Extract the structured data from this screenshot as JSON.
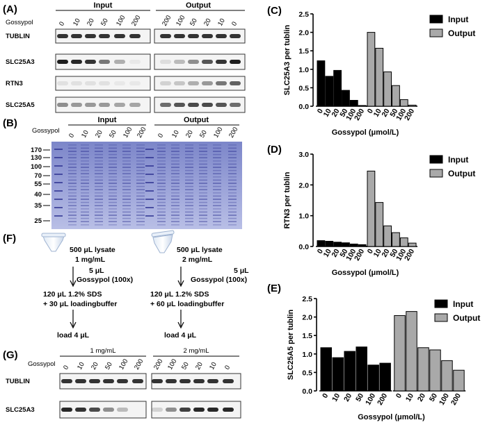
{
  "panels": {
    "A": "(A)",
    "B": "(B)",
    "C": "(C)",
    "D": "(D)",
    "E": "(E)",
    "F": "(F)",
    "G": "(G)"
  },
  "gossypol_label": "Gossypol",
  "group_input": "Input",
  "group_output": "Output",
  "lanes_forward": [
    "0",
    "10",
    "20",
    "50",
    "100",
    "200"
  ],
  "lanes_reverse": [
    "200",
    "100",
    "50",
    "20",
    "10",
    "0"
  ],
  "blot_labels_a": [
    "TUBLIN",
    "SLC25A3",
    "RTN3",
    "SLC25A5"
  ],
  "mw_markers": [
    "170",
    "130",
    "100",
    "70",
    "55",
    "40",
    "35",
    "25"
  ],
  "flow": {
    "left_line1": "500 μL lysate",
    "left_line2": "1 mg/mL",
    "left_add1": "5 μL",
    "left_add2": "Gossypol (100x)",
    "left_sds1": "120 μL 1.2% SDS",
    "left_sds2": "+ 30 μL loadingbuffer",
    "left_load": "load 4 μL",
    "right_line1": "500 μL lysate",
    "right_line2": "2 mg/mL",
    "right_add1": "5 μL",
    "right_add2": "Gossypol (100x)",
    "right_sds1": "120 μL 1.2% SDS",
    "right_sds2": "+ 60 μL loadingbuffer",
    "right_load": "load 4 μL"
  },
  "g_group_left": "1 mg/mL",
  "g_group_right": "2 mg/mL",
  "blot_labels_g": [
    "TUBLIN",
    "SLC25A3"
  ],
  "chart_data": [
    {
      "panel": "C",
      "type": "bar",
      "categories": [
        "0",
        "10",
        "20",
        "50",
        "100",
        "200"
      ],
      "series": [
        {
          "name": "Input",
          "values": [
            1.23,
            0.81,
            0.97,
            0.43,
            0.16,
            0.02
          ]
        },
        {
          "name": "Output",
          "values": [
            2.0,
            1.57,
            0.93,
            0.56,
            0.18,
            0.03
          ]
        }
      ],
      "ylabel": "SLC25A3 per tublin",
      "xlabel": "Gossypol (μmol/L)",
      "ylim": [
        0,
        2.5
      ],
      "yticks": [
        "0.0",
        "0.5",
        "1.0",
        "1.5",
        "2.0",
        "2.5"
      ],
      "legend": "top-right"
    },
    {
      "panel": "D",
      "type": "bar",
      "categories": [
        "0",
        "10",
        "20",
        "50",
        "100",
        "200"
      ],
      "series": [
        {
          "name": "Input",
          "values": [
            0.19,
            0.17,
            0.14,
            0.12,
            0.08,
            0.06
          ]
        },
        {
          "name": "Output",
          "values": [
            2.45,
            1.43,
            0.67,
            0.45,
            0.28,
            0.11
          ]
        }
      ],
      "ylabel": "RTN3 per tublin",
      "xlabel": "Gossypol (μmol/L)",
      "ylim": [
        0,
        3.0
      ],
      "yticks": [
        "0.0",
        "1.0",
        "2.0",
        "3.0"
      ],
      "legend": "top-right"
    },
    {
      "panel": "E",
      "type": "bar",
      "categories": [
        "0",
        "10",
        "20",
        "50",
        "100",
        "200"
      ],
      "series": [
        {
          "name": "Input",
          "values": [
            1.17,
            0.9,
            1.07,
            1.19,
            0.7,
            0.75
          ]
        },
        {
          "name": "Output",
          "values": [
            2.04,
            2.15,
            1.17,
            1.11,
            0.82,
            0.56
          ]
        }
      ],
      "ylabel": "SLC25A5 per tublin",
      "xlabel": "Gossypol (μmol/L)",
      "ylim": [
        0,
        2.5
      ],
      "yticks": [
        "0.0",
        "0.5",
        "1.0",
        "1.5",
        "2.0",
        "2.5"
      ],
      "legend": "top-right"
    }
  ],
  "colors": {
    "input": "#000000",
    "output": "#a9a9a9",
    "gel": "#8a93cf"
  }
}
